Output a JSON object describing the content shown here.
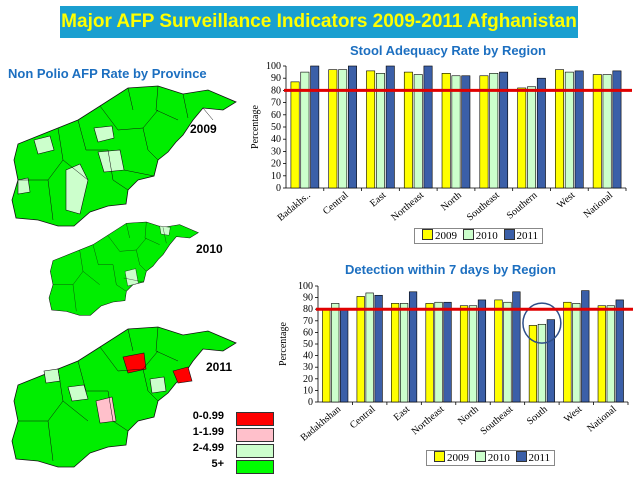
{
  "title": "Major AFP Surveillance Indicators 2009-2011 Afghanistan",
  "map_panel": {
    "title": "Non Polio AFP Rate by Province",
    "years": [
      "2009",
      "2010",
      "2011"
    ],
    "legend": [
      {
        "label": "0-0.99",
        "color": "#ff0000"
      },
      {
        "label": "1-1.99",
        "color": "#ffc0cb"
      },
      {
        "label": "2-4.99",
        "color": "#ccffcc"
      },
      {
        "label": "5+",
        "color": "#00ff00"
      }
    ]
  },
  "chart_data": [
    {
      "type": "bar",
      "title": "Stool Adequacy  Rate by Region",
      "ylabel": "Percentage",
      "ylim": [
        0,
        100
      ],
      "yticks": [
        0,
        10,
        20,
        30,
        40,
        50,
        60,
        70,
        80,
        90,
        100
      ],
      "target_line": 80,
      "categories": [
        "Badakhs..",
        "Central",
        "East",
        "Northeast",
        "North",
        "Southeast",
        "Southern",
        "West",
        "National"
      ],
      "series": [
        {
          "name": "2009",
          "color": "#ffff00",
          "values": [
            87,
            97,
            96,
            95,
            94,
            92,
            82,
            97,
            93
          ]
        },
        {
          "name": "2010",
          "color": "#ccffcc",
          "values": [
            95,
            97,
            94,
            93,
            92,
            94,
            83,
            95,
            93
          ]
        },
        {
          "name": "2011",
          "color": "#3b5fa8",
          "values": [
            100,
            100,
            100,
            100,
            92,
            95,
            90,
            96,
            96
          ]
        }
      ],
      "legend_position": "bottom"
    },
    {
      "type": "bar",
      "title": "Detection within 7 days by Region",
      "ylabel": "Percentage",
      "ylim": [
        0,
        100
      ],
      "yticks": [
        0,
        10,
        20,
        30,
        40,
        50,
        60,
        70,
        80,
        90,
        100
      ],
      "target_line": 80,
      "categories": [
        "Badakhshan",
        "Central",
        "East",
        "Northeast",
        "North",
        "Southeast",
        "South",
        "West",
        "National"
      ],
      "series": [
        {
          "name": "2009",
          "color": "#ffff00",
          "values": [
            80,
            91,
            85,
            85,
            83,
            88,
            66,
            86,
            83
          ]
        },
        {
          "name": "2010",
          "color": "#ccffcc",
          "values": [
            85,
            94,
            85,
            86,
            83,
            86,
            67,
            85,
            83
          ]
        },
        {
          "name": "2011",
          "color": "#3b5fa8",
          "values": [
            80,
            92,
            95,
            86,
            88,
            95,
            71,
            96,
            88
          ]
        }
      ],
      "highlight_category": "South",
      "legend_position": "bottom"
    }
  ]
}
